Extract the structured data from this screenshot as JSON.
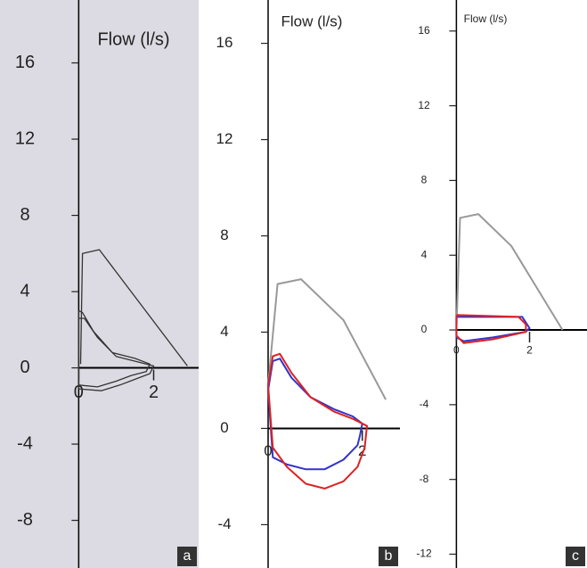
{
  "chart_data": [
    {
      "type": "line",
      "title": "Flow (l/s)",
      "panel_label": "a",
      "xlim": [
        -2.1,
        3.2
      ],
      "ylim": [
        -10.5,
        19.3
      ],
      "xticks": [
        0,
        2
      ],
      "yticks": [
        -8,
        -4,
        0,
        4,
        8,
        12,
        16
      ],
      "series": [
        {
          "color": "#333333",
          "x": [
            0.05,
            0.1,
            0.55,
            2.9
          ],
          "values": [
            0.2,
            6.0,
            6.2,
            0.1
          ]
        },
        {
          "color": "#333333",
          "x": [
            0,
            0.1,
            0.4,
            0.9,
            1.5,
            1.9,
            1.8,
            1.4,
            1.0,
            0.5,
            0,
            0
          ],
          "values": [
            3.0,
            2.9,
            1.9,
            0.8,
            0.5,
            0.2,
            -0.2,
            -0.4,
            -0.7,
            -1.0,
            -0.9,
            3.0
          ]
        },
        {
          "color": "#333333",
          "x": [
            0,
            0.15,
            0.5,
            1.0,
            1.6,
            2.0,
            1.9,
            1.5,
            1.1,
            0.6,
            0,
            0
          ],
          "values": [
            2.6,
            2.6,
            1.6,
            0.6,
            0.3,
            0.1,
            -0.3,
            -0.6,
            -0.9,
            -1.2,
            -1.1,
            2.6
          ]
        }
      ]
    },
    {
      "type": "line",
      "title": "Flow (l/s)",
      "panel_label": "b",
      "xlim": [
        -1.4,
        2.8
      ],
      "ylim": [
        -5.8,
        17.8
      ],
      "xticks": [
        0,
        2
      ],
      "yticks": [
        -4,
        0,
        4,
        8,
        12,
        16
      ],
      "series": [
        {
          "color": "#999999",
          "x": [
            0,
            0.2,
            0.7,
            1.6,
            2.5
          ],
          "values": [
            1.8,
            6.0,
            6.2,
            4.5,
            1.2
          ]
        },
        {
          "color": "#3333cc",
          "x": [
            0,
            0.1,
            0.25,
            0.5,
            0.9,
            1.4,
            1.8,
            2.0,
            1.95,
            1.9,
            1.6,
            1.2,
            0.8,
            0.4,
            0.1,
            0
          ],
          "values": [
            1.6,
            2.8,
            2.9,
            2.1,
            1.3,
            0.8,
            0.5,
            0.2,
            -0.3,
            -0.7,
            -1.3,
            -1.7,
            -1.7,
            -1.5,
            -1.2,
            1.6
          ]
        },
        {
          "color": "#dd2222",
          "x": [
            0,
            0.1,
            0.25,
            0.5,
            0.9,
            1.4,
            1.8,
            2.1,
            2.05,
            1.9,
            1.6,
            1.2,
            0.8,
            0.4,
            0.1,
            0
          ],
          "values": [
            1.8,
            3.0,
            3.1,
            2.3,
            1.3,
            0.7,
            0.4,
            0.1,
            -0.8,
            -1.6,
            -2.2,
            -2.5,
            -2.3,
            -1.6,
            -0.8,
            1.8
          ]
        }
      ]
    },
    {
      "type": "line",
      "title": "Flow (l/s)",
      "panel_label": "c",
      "xlim": [
        -1.47,
        3.57
      ],
      "ylim": [
        -12.74,
        17.66
      ],
      "xticks": [
        0,
        2
      ],
      "yticks": [
        -12,
        -8,
        -4,
        0,
        4,
        8,
        12,
        16
      ],
      "series": [
        {
          "color": "#999999",
          "x": [
            0,
            0.1,
            0.6,
            1.5,
            2.9
          ],
          "values": [
            0,
            6.0,
            6.2,
            4.5,
            0
          ]
        },
        {
          "color": "#3333cc",
          "x": [
            0,
            1.8,
            2.0,
            1.9,
            1.0,
            0.2,
            0,
            0
          ],
          "values": [
            0.7,
            0.7,
            0.1,
            -0.1,
            -0.4,
            -0.6,
            -0.4,
            0.7
          ]
        },
        {
          "color": "#dd2222",
          "x": [
            0,
            1.7,
            1.9,
            1.9,
            1.0,
            0.2,
            0,
            0
          ],
          "values": [
            0.8,
            0.7,
            0.3,
            -0.1,
            -0.5,
            -0.7,
            -0.3,
            0.8
          ]
        }
      ]
    }
  ]
}
